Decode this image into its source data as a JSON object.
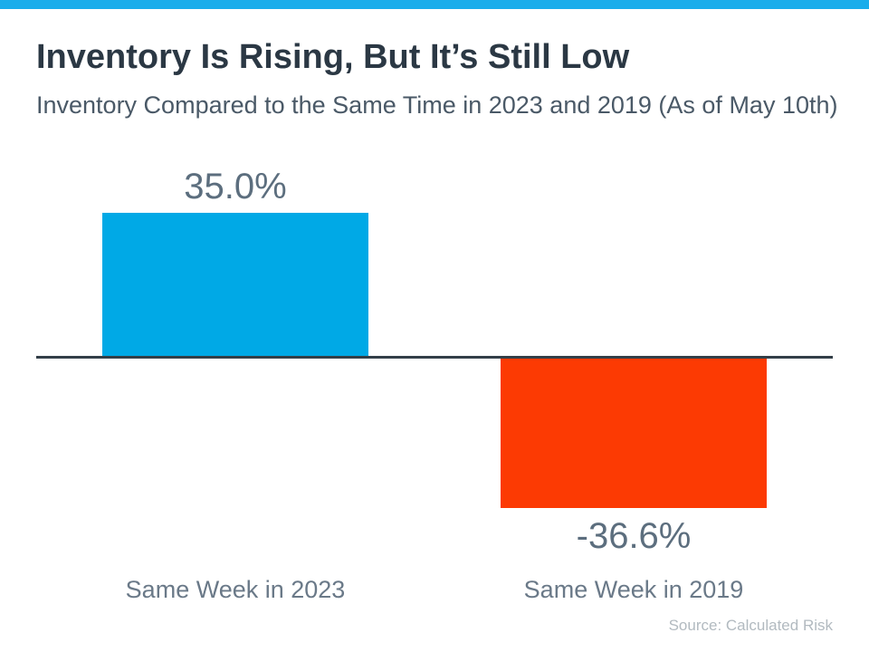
{
  "page": {
    "title": "Inventory Is Rising, But It’s Still Low",
    "subtitle": "Inventory Compared to the Same Time in 2023 and 2019 (As of May 10th)",
    "source": "Source: Calculated Risk"
  },
  "colors": {
    "top_strip": "#19ADEB",
    "positive_bar": "#00A9E6",
    "negative_bar": "#FC3A03",
    "baseline": "#333F48",
    "title_text": "#2B3844",
    "subtitle_text": "#4A5967",
    "value_label_text": "#5C6E7E",
    "category_label_text": "#6A7988",
    "source_text": "#B2BAC0"
  },
  "chart_data": {
    "type": "bar",
    "title": "Inventory Is Rising, But It’s Still Low",
    "subtitle": "Inventory Compared to the Same Time in 2023 and 2019 (As of May 10th)",
    "categories": [
      "Same Week in 2023",
      "Same Week in 2019"
    ],
    "values": [
      35.0,
      -36.6
    ],
    "value_labels": [
      "35.0%",
      "-36.6%"
    ],
    "xlabel": "",
    "ylabel": "",
    "ylim": [
      -40,
      40
    ],
    "grid": false,
    "legend": false,
    "source": "Source: Calculated Risk"
  }
}
